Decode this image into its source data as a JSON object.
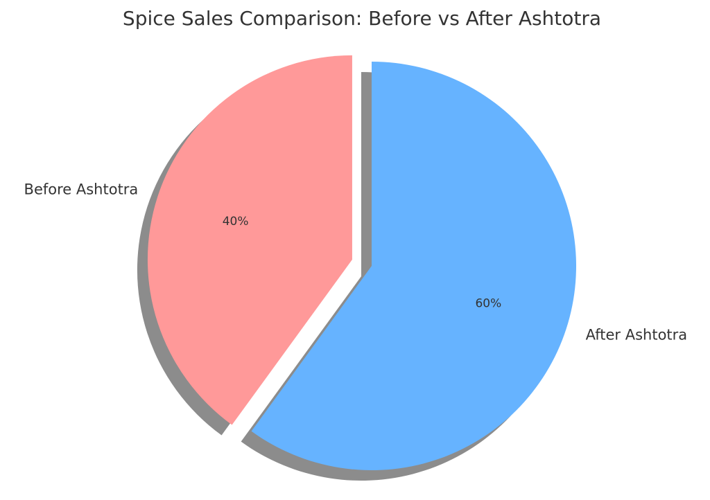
{
  "chart_data": {
    "type": "pie",
    "title": "Spice Sales Comparison: Before vs After Ashtotra",
    "categories": [
      "Before Ashtotra",
      "After Ashtotra"
    ],
    "values": [
      40,
      60
    ],
    "value_labels": [
      "40%",
      "60%"
    ],
    "colors": [
      "#ff9999",
      "#66b3ff"
    ],
    "explode": [
      0.1,
      0
    ],
    "startangle": 90,
    "shadow": true
  }
}
